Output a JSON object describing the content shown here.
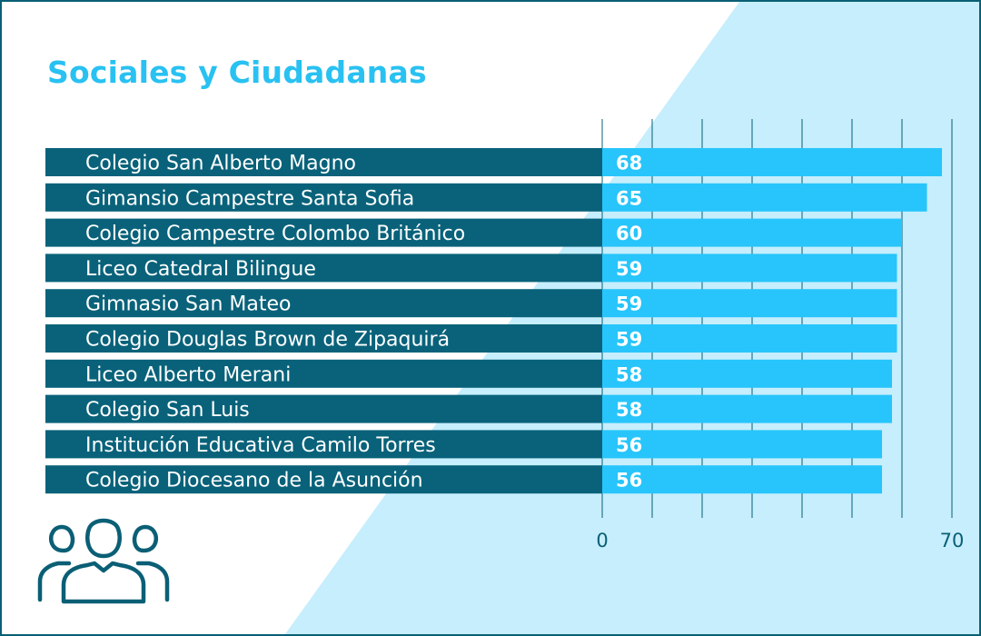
{
  "title": "Sociales y Ciudadanas",
  "colors": {
    "border": "#0a5f75",
    "label_band": "#09627a",
    "bar": "#27c5fb",
    "title": "#29c1f2",
    "wedge": "#c6eefc",
    "gridline": "#0a5f75",
    "value_text": "#ffffff",
    "label_text": "#ffffff",
    "axis_text": "#0a5f75"
  },
  "icon": "people-group-icon",
  "chart_data": {
    "type": "bar",
    "orientation": "horizontal",
    "title": "Sociales y Ciudadanas",
    "categories": [
      "Colegio San Alberto Magno",
      "Gimansio Campestre Santa Sofia",
      "Colegio Campestre Colombo Británico",
      "Liceo Catedral Bilingue",
      "Gimnasio San Mateo",
      "Colegio Douglas Brown de Zipaquirá",
      "Liceo Alberto Merani",
      "Colegio San Luis",
      "Institución Educativa Camilo Torres",
      "Colegio Diocesano de la Asunción"
    ],
    "values": [
      68,
      65,
      60,
      59,
      59,
      59,
      58,
      58,
      56,
      56
    ],
    "value_labels": [
      "68",
      "65",
      "60",
      "59",
      "59",
      "59",
      "58",
      "58",
      "56",
      "56"
    ],
    "xlim": [
      0,
      70
    ],
    "x_tick_labels": [
      "0",
      "70"
    ],
    "grid": true
  }
}
